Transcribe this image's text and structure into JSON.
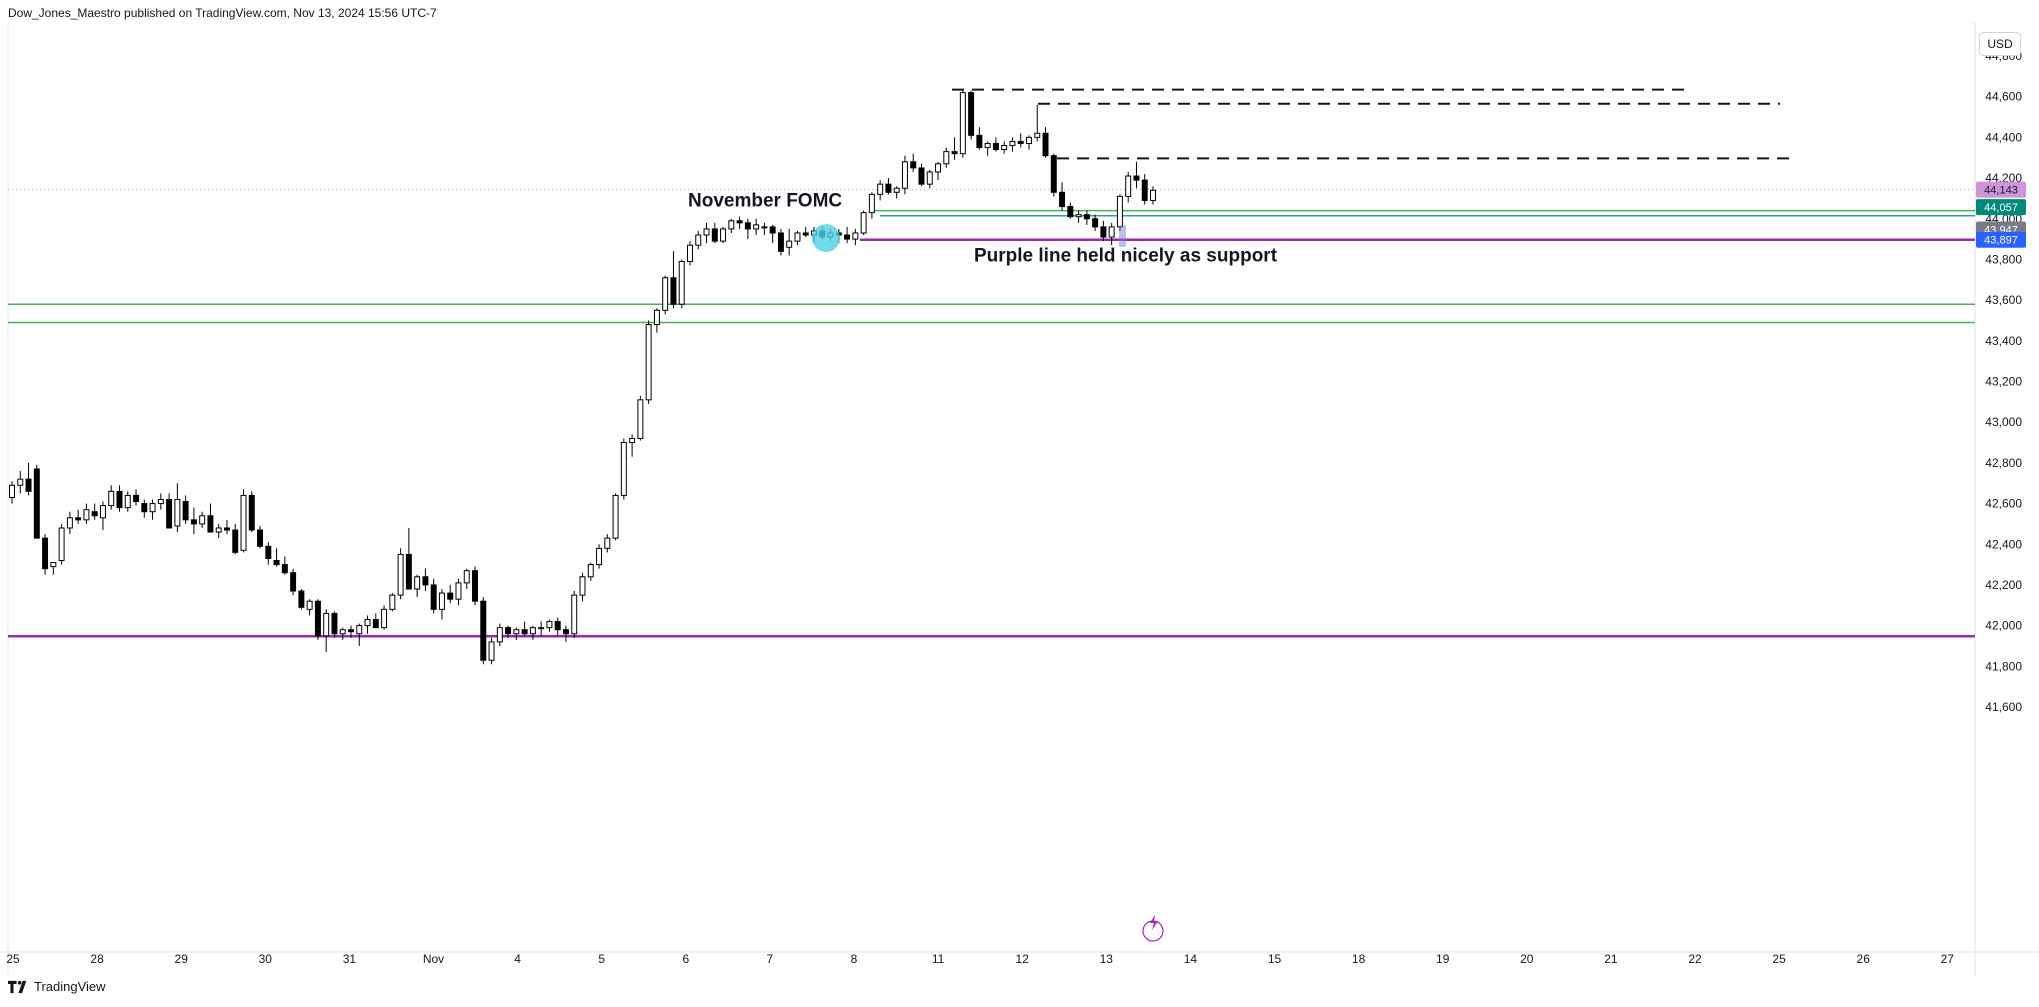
{
  "header": {
    "publisher_line": "Dow_Jones_Maestro published on TradingView.com, Nov 13, 2024 15:56 UTC-7"
  },
  "currency_button": "USD",
  "footer": {
    "brand": "TradingView"
  },
  "colors": {
    "up_candle": "#ffffff",
    "down_candle": "#000000",
    "purple_line": "#9c27b0",
    "green_line": "#4caf50",
    "teal_line": "#26a69a",
    "badge_pink": "#ce93d8",
    "badge_teal": "#00897b",
    "badge_gray": "#787b86",
    "badge_blue": "#2962ff",
    "fomc_circle": "#4dd0e1"
  },
  "chart_data": {
    "type": "candlestick",
    "title": "",
    "xlabel": "",
    "ylabel": "",
    "ylim": [
      41500,
      44900
    ],
    "y_ticks": [
      "41,600",
      "41,800",
      "42,000",
      "42,200",
      "42,400",
      "42,600",
      "42,800",
      "43,000",
      "43,200",
      "43,400",
      "43,600",
      "43,800",
      "44,000",
      "44,200",
      "44,400",
      "44,600",
      "44,800"
    ],
    "x_ticks": [
      "25",
      "28",
      "29",
      "30",
      "31",
      "Nov",
      "4",
      "5",
      "6",
      "7",
      "8",
      "11",
      "12",
      "13",
      "14",
      "15",
      "18",
      "19",
      "20",
      "21",
      "22",
      "25",
      "26",
      "27"
    ],
    "candles_ohlc": [
      [
        42630,
        42710,
        42600,
        42690
      ],
      [
        42690,
        42760,
        42650,
        42720
      ],
      [
        42720,
        42800,
        42640,
        42660
      ],
      [
        42770,
        42790,
        42450,
        42430
      ],
      [
        42430,
        42450,
        42250,
        42280
      ],
      [
        42290,
        42300,
        42250,
        42310
      ],
      [
        42320,
        42500,
        42300,
        42480
      ],
      [
        42480,
        42560,
        42450,
        42530
      ],
      [
        42530,
        42570,
        42500,
        42520
      ],
      [
        42520,
        42600,
        42500,
        42570
      ],
      [
        42560,
        42600,
        42520,
        42540
      ],
      [
        42530,
        42610,
        42470,
        42590
      ],
      [
        42590,
        42690,
        42570,
        42660
      ],
      [
        42660,
        42690,
        42560,
        42580
      ],
      [
        42580,
        42660,
        42560,
        42640
      ],
      [
        42640,
        42670,
        42590,
        42610
      ],
      [
        42600,
        42620,
        42530,
        42560
      ],
      [
        42560,
        42620,
        42520,
        42600
      ],
      [
        42600,
        42650,
        42570,
        42620
      ],
      [
        42620,
        42650,
        42480,
        42480
      ],
      [
        42490,
        42700,
        42460,
        42620
      ],
      [
        42610,
        42640,
        42500,
        42520
      ],
      [
        42520,
        42580,
        42450,
        42500
      ],
      [
        42500,
        42560,
        42480,
        42540
      ],
      [
        42540,
        42600,
        42480,
        42460
      ],
      [
        42460,
        42500,
        42430,
        42480
      ],
      [
        42480,
        42520,
        42450,
        42470
      ],
      [
        42470,
        42500,
        42350,
        42360
      ],
      [
        42370,
        42670,
        42360,
        42640
      ],
      [
        42640,
        42660,
        42460,
        42470
      ],
      [
        42470,
        42490,
        42380,
        42390
      ],
      [
        42390,
        42410,
        42300,
        42330
      ],
      [
        42320,
        42380,
        42290,
        42300
      ],
      [
        42300,
        42340,
        42250,
        42260
      ],
      [
        42260,
        42280,
        42150,
        42170
      ],
      [
        42170,
        42180,
        42080,
        42090
      ],
      [
        42080,
        42130,
        42050,
        42120
      ],
      [
        42120,
        42130,
        41930,
        41950
      ],
      [
        41950,
        42080,
        41870,
        42060
      ],
      [
        42060,
        42070,
        41940,
        41960
      ],
      [
        41960,
        41990,
        41930,
        41980
      ],
      [
        41980,
        42000,
        41940,
        41970
      ],
      [
        41960,
        42010,
        41900,
        42000
      ],
      [
        42000,
        42050,
        41960,
        42030
      ],
      [
        42030,
        42060,
        41990,
        41990
      ],
      [
        41990,
        42100,
        41980,
        42080
      ],
      [
        42080,
        42160,
        42070,
        42150
      ],
      [
        42150,
        42380,
        42130,
        42350
      ],
      [
        42350,
        42480,
        42310,
        42180
      ],
      [
        42180,
        42250,
        42140,
        42240
      ],
      [
        42240,
        42280,
        42170,
        42200
      ],
      [
        42200,
        42230,
        42060,
        42080
      ],
      [
        42080,
        42180,
        42030,
        42160
      ],
      [
        42160,
        42200,
        42110,
        42130
      ],
      [
        42130,
        42230,
        42100,
        42210
      ],
      [
        42210,
        42280,
        42180,
        42270
      ],
      [
        42270,
        42290,
        42100,
        42120
      ],
      [
        42120,
        42140,
        41810,
        41830
      ],
      [
        41830,
        41940,
        41810,
        41920
      ],
      [
        41920,
        42010,
        41900,
        41990
      ],
      [
        41990,
        42000,
        41940,
        41960
      ],
      [
        41960,
        41990,
        41930,
        41980
      ],
      [
        41980,
        42020,
        41950,
        41960
      ],
      [
        41960,
        42000,
        41930,
        41990
      ],
      [
        41990,
        42020,
        41950,
        41990
      ],
      [
        41990,
        42030,
        41970,
        42020
      ],
      [
        42020,
        42040,
        41950,
        41980
      ],
      [
        41980,
        42000,
        41920,
        41960
      ],
      [
        41960,
        42170,
        41940,
        42150
      ],
      [
        42150,
        42260,
        42120,
        42240
      ],
      [
        42240,
        42310,
        42220,
        42300
      ],
      [
        42300,
        42400,
        42280,
        42380
      ],
      [
        42380,
        42450,
        42360,
        42430
      ],
      [
        42430,
        42650,
        42420,
        42640
      ],
      [
        42640,
        42920,
        42620,
        42900
      ],
      [
        42900,
        42940,
        42830,
        42920
      ],
      [
        42920,
        43130,
        42910,
        43110
      ],
      [
        43110,
        43500,
        43090,
        43480
      ],
      [
        43480,
        43560,
        43440,
        43550
      ],
      [
        43550,
        43720,
        43530,
        43710
      ],
      [
        43710,
        43840,
        43560,
        43580
      ],
      [
        43580,
        43800,
        43560,
        43790
      ],
      [
        43790,
        43890,
        43770,
        43870
      ],
      [
        43870,
        43940,
        43850,
        43920
      ],
      [
        43920,
        43980,
        43880,
        43950
      ],
      [
        43950,
        43980,
        43880,
        43890
      ],
      [
        43890,
        43960,
        43880,
        43950
      ],
      [
        43950,
        44000,
        43930,
        43990
      ],
      [
        43990,
        44010,
        43950,
        43980
      ],
      [
        43980,
        44000,
        43900,
        43950
      ],
      [
        43950,
        44000,
        43920,
        43970
      ],
      [
        43960,
        43980,
        43920,
        43960
      ],
      [
        43960,
        43970,
        43880,
        43930
      ],
      [
        43930,
        43950,
        43820,
        43840
      ],
      [
        43860,
        43950,
        43820,
        43890
      ],
      [
        43890,
        43940,
        43870,
        43930
      ],
      [
        43930,
        43960,
        43910,
        43920
      ],
      [
        43920,
        43960,
        43880,
        43940
      ],
      [
        43940,
        43960,
        43900,
        43910
      ],
      [
        43910,
        43950,
        43890,
        43930
      ],
      [
        43930,
        43950,
        43880,
        43920
      ],
      [
        43920,
        43960,
        43880,
        43900
      ],
      [
        43900,
        43950,
        43870,
        43930
      ],
      [
        43930,
        44040,
        43920,
        44030
      ],
      [
        44030,
        44130,
        44000,
        44120
      ],
      [
        44120,
        44190,
        44090,
        44170
      ],
      [
        44170,
        44200,
        44120,
        44130
      ],
      [
        44130,
        44160,
        44100,
        44150
      ],
      [
        44150,
        44310,
        44120,
        44280
      ],
      [
        44280,
        44320,
        44230,
        44250
      ],
      [
        44250,
        44270,
        44160,
        44170
      ],
      [
        44170,
        44240,
        44150,
        44230
      ],
      [
        44230,
        44280,
        44190,
        44270
      ],
      [
        44270,
        44350,
        44250,
        44330
      ],
      [
        44330,
        44400,
        44290,
        44320
      ],
      [
        44320,
        44630,
        44300,
        44620
      ],
      [
        44620,
        44630,
        44390,
        44410
      ],
      [
        44410,
        44450,
        44340,
        44350
      ],
      [
        44350,
        44380,
        44310,
        44370
      ],
      [
        44370,
        44400,
        44330,
        44340
      ],
      [
        44340,
        44380,
        44320,
        44360
      ],
      [
        44360,
        44400,
        44330,
        44380
      ],
      [
        44380,
        44420,
        44350,
        44370
      ],
      [
        44370,
        44410,
        44340,
        44400
      ],
      [
        44400,
        44560,
        44380,
        44420
      ],
      [
        44420,
        44450,
        44300,
        44310
      ],
      [
        44310,
        44320,
        44110,
        44130
      ],
      [
        44130,
        44180,
        44040,
        44060
      ],
      [
        44060,
        44080,
        44000,
        44010
      ],
      [
        44010,
        44040,
        43980,
        44020
      ],
      [
        44020,
        44040,
        43970,
        44000
      ],
      [
        44000,
        44020,
        43940,
        43960
      ],
      [
        43960,
        43990,
        43890,
        43910
      ],
      [
        43910,
        43980,
        43870,
        43960
      ],
      [
        43960,
        44120,
        43940,
        44110
      ],
      [
        44110,
        44230,
        44080,
        44210
      ],
      [
        44210,
        44280,
        44150,
        44190
      ],
      [
        44190,
        44220,
        44070,
        44090
      ],
      [
        44090,
        44160,
        44070,
        44140
      ]
    ],
    "horizontal_levels": [
      {
        "price": 41948,
        "style": "solid",
        "color": "purple"
      },
      {
        "price": 43897,
        "style": "solid",
        "color": "purple"
      },
      {
        "price": 43580,
        "style": "solid",
        "color": "green"
      },
      {
        "price": 43490,
        "style": "solid",
        "color": "green"
      },
      {
        "price": 44040,
        "style": "solid",
        "color": "green"
      },
      {
        "price": 44015,
        "style": "solid",
        "color": "teal"
      },
      {
        "price": 44635,
        "style": "dashed",
        "color": "black"
      },
      {
        "price": 44565,
        "style": "dashed",
        "color": "black"
      },
      {
        "price": 44297,
        "style": "dashed",
        "color": "black"
      }
    ],
    "annotations": [
      {
        "text": "November FOMC"
      },
      {
        "text": "Purple line held nicely as support"
      }
    ],
    "price_badges": [
      {
        "text": "44,143",
        "color": "pink"
      },
      {
        "text": "44,057",
        "color": "teal"
      },
      {
        "text": "43,947",
        "color": "gray"
      },
      {
        "text": "43,897",
        "color": "blue"
      }
    ]
  }
}
